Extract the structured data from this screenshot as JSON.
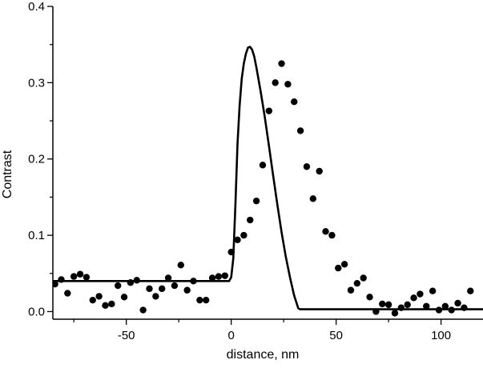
{
  "chart_data": {
    "type": "scatter",
    "title": "",
    "xlabel": "distance, nm",
    "ylabel": "Contrast",
    "xlim": [
      -85,
      120
    ],
    "ylim": [
      -0.01,
      0.4
    ],
    "x_ticks": [
      -50,
      0,
      50,
      100
    ],
    "x_tick_labels": [
      "-50",
      "0",
      "50",
      "100"
    ],
    "x_minor_ticks": [
      -75,
      -25,
      25,
      75
    ],
    "y_ticks": [
      0.0,
      0.1,
      0.2,
      0.3,
      0.4
    ],
    "y_tick_labels": [
      "0.0",
      "0.1",
      "0.2",
      "0.3",
      "0.4"
    ],
    "y_minor_ticks": [
      0.05,
      0.15,
      0.25,
      0.35
    ],
    "grid": false,
    "legend": "none",
    "colors": {
      "line": "#000000",
      "points": "#000000",
      "axes": "#000000"
    },
    "series": [
      {
        "kind": "scatter",
        "x": [
          -84,
          -81,
          -78,
          -75,
          -72,
          -69,
          -66,
          -63,
          -60,
          -57,
          -54,
          -51,
          -48,
          -45,
          -42,
          -39,
          -36,
          -33,
          -30,
          -27,
          -24,
          -21,
          -18,
          -15,
          -12,
          -9,
          -6,
          -3,
          0,
          3,
          6,
          9,
          12,
          15,
          18,
          21,
          24,
          27,
          30,
          33,
          36,
          39,
          42,
          45,
          48,
          51,
          54,
          57,
          60,
          63,
          66,
          69,
          72,
          75,
          78,
          81,
          84,
          87,
          90,
          93,
          96,
          99,
          102,
          105,
          108,
          111,
          114
        ],
        "y": [
          0.036,
          0.042,
          0.024,
          0.046,
          0.049,
          0.045,
          0.015,
          0.02,
          0.008,
          0.01,
          0.034,
          0.019,
          0.038,
          0.041,
          0.002,
          0.03,
          0.02,
          0.03,
          0.044,
          0.034,
          0.061,
          0.028,
          0.04,
          0.015,
          0.015,
          0.044,
          0.046,
          0.047,
          0.078,
          0.094,
          0.1,
          0.12,
          0.145,
          0.192,
          0.263,
          0.3,
          0.325,
          0.298,
          0.275,
          0.237,
          0.19,
          0.148,
          0.184,
          0.105,
          0.1,
          0.057,
          0.062,
          0.028,
          0.037,
          0.044,
          0.019,
          0.0,
          0.01,
          0.009,
          -0.002,
          0.005,
          0.009,
          0.018,
          0.023,
          0.007,
          0.027,
          0.002,
          0.007,
          0.002,
          0.011,
          0.005,
          0.027
        ]
      },
      {
        "kind": "line",
        "x": [
          -85,
          -1,
          0,
          1,
          2,
          3,
          4,
          5,
          6,
          7,
          8,
          9,
          10,
          11,
          12,
          14,
          16,
          18,
          20,
          22,
          24,
          26,
          28,
          30,
          32,
          33,
          120
        ],
        "y": [
          0.04,
          0.04,
          0.045,
          0.07,
          0.14,
          0.22,
          0.27,
          0.305,
          0.325,
          0.338,
          0.346,
          0.347,
          0.343,
          0.334,
          0.32,
          0.289,
          0.255,
          0.217,
          0.178,
          0.14,
          0.104,
          0.072,
          0.045,
          0.021,
          0.004,
          0.003,
          0.003
        ]
      }
    ]
  }
}
